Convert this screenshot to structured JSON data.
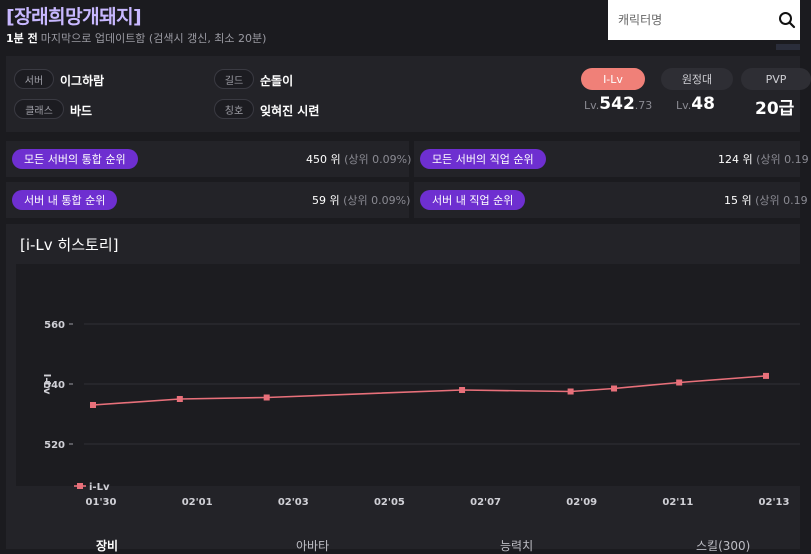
{
  "header": {
    "character_name": "[장래희망개돼지]",
    "updated_ago": "1분 전",
    "updated_desc": "마지막으로 업데이트함 (검색시 갱신, 최소 20분)"
  },
  "search": {
    "placeholder": "캐릭터명"
  },
  "info": {
    "server_label": "서버",
    "server_value": "이그하람",
    "guild_label": "길드",
    "guild_value": "순돌이",
    "class_label": "클래스",
    "class_value": "바드",
    "title_label": "칭호",
    "title_value": "잊혀진 시련"
  },
  "stats": {
    "tabs": [
      "I-Lv",
      "원정대",
      "PVP"
    ],
    "ilv_prefix": "Lv.",
    "ilv_int": "542",
    "ilv_dec": ".73",
    "expedition_prefix": "Lv.",
    "expedition_value": "48",
    "pvp_value": "20급"
  },
  "ranks": [
    {
      "label": "모든 서버의 통합 순위",
      "value": "450 위",
      "sub": "(상위 0.09%)"
    },
    {
      "label": "모든 서버의 직업 순위",
      "value": "124 위",
      "sub": "(상위 0.19"
    },
    {
      "label": "서버 내 통합 순위",
      "value": "59 위",
      "sub": "(상위 0.09%)"
    },
    {
      "label": "서버 내 직업 순위",
      "value": "15 위",
      "sub": "(상위 0.19"
    }
  ],
  "history": {
    "title": "[i-Lv 히스토리]"
  },
  "chart_data": {
    "type": "line",
    "title": "",
    "xlabel": "",
    "ylabel": "I-Lv",
    "x_ticks": [
      "01'30",
      "02'01",
      "02'03",
      "02'05",
      "02'07",
      "02'09",
      "02'11",
      "02'13"
    ],
    "y_ticks": [
      520,
      540,
      560
    ],
    "ylim": [
      506,
      580
    ],
    "grid": true,
    "legend_position": "bottom-left",
    "series": [
      {
        "name": "i-Lv",
        "color": "#e8707a",
        "points": [
          {
            "x": 0,
            "y": 533.0
          },
          {
            "x": 2,
            "y": 535.0
          },
          {
            "x": 4,
            "y": 535.5
          },
          {
            "x": 8.5,
            "y": 538.0
          },
          {
            "x": 11,
            "y": 537.5
          },
          {
            "x": 12,
            "y": 538.5
          },
          {
            "x": 13.5,
            "y": 540.5
          },
          {
            "x": 15.5,
            "y": 542.7
          }
        ]
      }
    ]
  },
  "bottom_tabs": [
    "장비",
    "아바타",
    "능력치",
    "스킬(300)"
  ]
}
